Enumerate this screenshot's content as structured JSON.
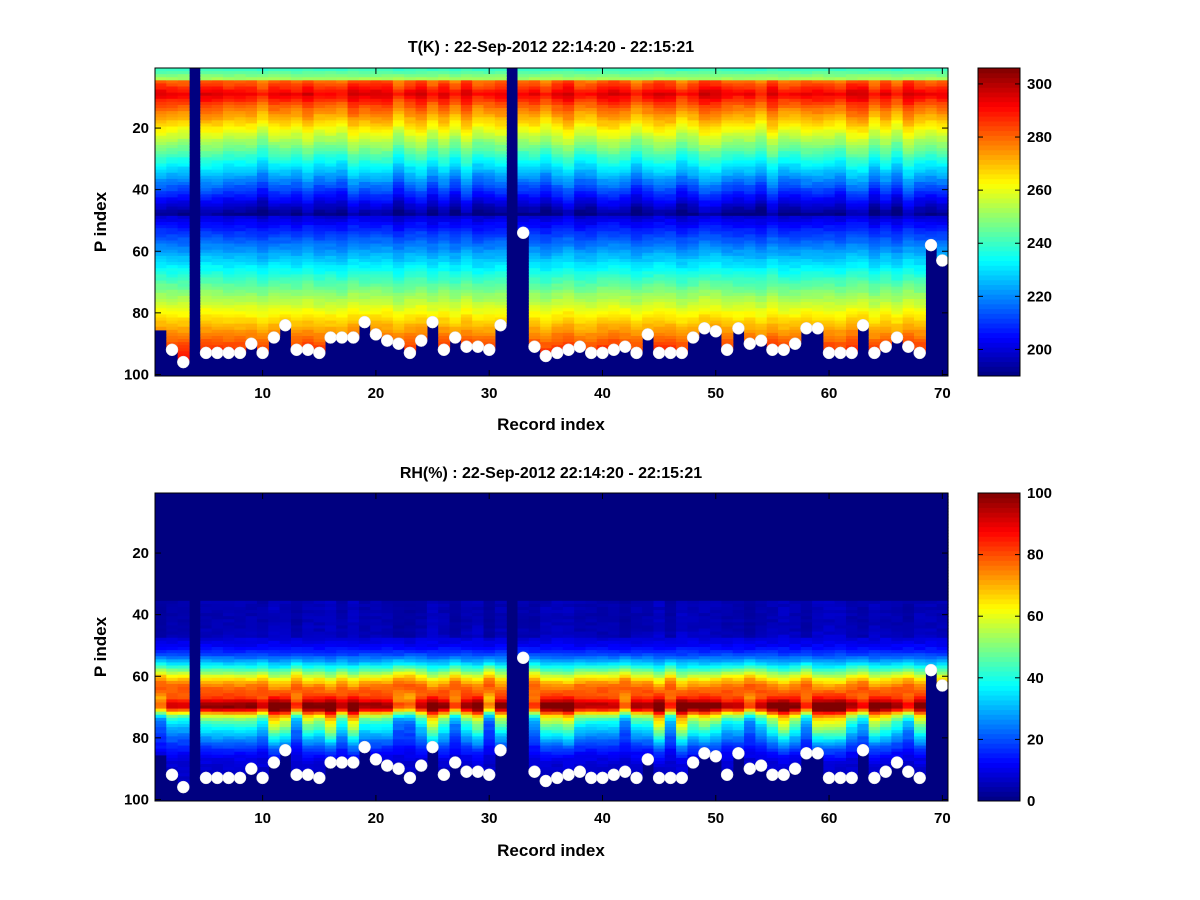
{
  "chart_data": [
    {
      "type": "heatmap",
      "title": "T(K) : 22-Sep-2012 22:14:20 - 22:15:21",
      "xlabel": "Record index",
      "ylabel": "P index",
      "xlim": [
        1,
        70
      ],
      "ylim": [
        1,
        100
      ],
      "y_reversed": true,
      "x_ticks": [
        10,
        20,
        30,
        40,
        50,
        60,
        70
      ],
      "y_ticks": [
        20,
        40,
        60,
        80,
        100
      ],
      "colormap": "jet",
      "colorbar": {
        "min": 190,
        "max": 306,
        "ticks": [
          200,
          220,
          240,
          260,
          280,
          300
        ]
      },
      "missing_records": [
        4,
        32
      ],
      "surface_index": [
        86,
        92,
        96,
        100,
        93,
        93,
        93,
        93,
        90,
        93,
        88,
        84,
        92,
        92,
        93,
        88,
        88,
        88,
        83,
        87,
        89,
        90,
        93,
        89,
        83,
        92,
        88,
        91,
        91,
        92,
        84,
        100,
        54,
        91,
        94,
        93,
        92,
        91,
        93,
        93,
        92,
        91,
        93,
        87,
        93,
        93,
        93,
        88,
        85,
        86,
        92,
        85,
        90,
        89,
        92,
        92,
        90,
        85,
        85,
        93,
        93,
        93,
        84,
        93,
        91,
        88,
        91,
        93,
        58,
        63
      ],
      "surface_markers": [
        2,
        3,
        5,
        6,
        7,
        8,
        9,
        10,
        11,
        12,
        13,
        14,
        15,
        16,
        17,
        18,
        19,
        20,
        21,
        22,
        23,
        24,
        25,
        26,
        27,
        28,
        29,
        30,
        31,
        33,
        34,
        35,
        36,
        37,
        38,
        39,
        40,
        41,
        42,
        43,
        44,
        45,
        46,
        47,
        48,
        49,
        50,
        51,
        52,
        53,
        54,
        55,
        56,
        57,
        58,
        59,
        60,
        61,
        62,
        63,
        64,
        65,
        66,
        67,
        68,
        69,
        70
      ]
    },
    {
      "type": "heatmap",
      "title": "RH(%) : 22-Sep-2012 22:14:20 - 22:15:21",
      "xlabel": "Record index",
      "ylabel": "P index",
      "xlim": [
        1,
        70
      ],
      "ylim": [
        1,
        100
      ],
      "y_reversed": true,
      "x_ticks": [
        10,
        20,
        30,
        40,
        50,
        60,
        70
      ],
      "y_ticks": [
        20,
        40,
        60,
        80,
        100
      ],
      "colormap": "jet",
      "colorbar": {
        "min": 0,
        "max": 100,
        "ticks": [
          0,
          20,
          40,
          60,
          80,
          100
        ]
      },
      "missing_records": [
        4,
        32
      ],
      "surface_index": [
        86,
        92,
        96,
        100,
        93,
        93,
        93,
        93,
        90,
        93,
        88,
        84,
        92,
        92,
        93,
        88,
        88,
        88,
        83,
        87,
        89,
        90,
        93,
        89,
        83,
        92,
        88,
        91,
        91,
        92,
        84,
        100,
        54,
        91,
        94,
        93,
        92,
        91,
        93,
        93,
        92,
        91,
        93,
        87,
        93,
        93,
        93,
        88,
        85,
        86,
        92,
        85,
        90,
        89,
        92,
        92,
        90,
        85,
        85,
        93,
        93,
        93,
        84,
        93,
        91,
        88,
        91,
        93,
        58,
        63
      ],
      "surface_markers": [
        2,
        3,
        5,
        6,
        7,
        8,
        9,
        10,
        11,
        12,
        13,
        14,
        15,
        16,
        17,
        18,
        19,
        20,
        21,
        22,
        23,
        24,
        25,
        26,
        27,
        28,
        29,
        30,
        31,
        33,
        34,
        35,
        36,
        37,
        38,
        39,
        40,
        41,
        42,
        43,
        44,
        45,
        46,
        47,
        48,
        49,
        50,
        51,
        52,
        53,
        54,
        55,
        56,
        57,
        58,
        59,
        60,
        61,
        62,
        63,
        64,
        65,
        66,
        67,
        68,
        69,
        70
      ]
    }
  ]
}
